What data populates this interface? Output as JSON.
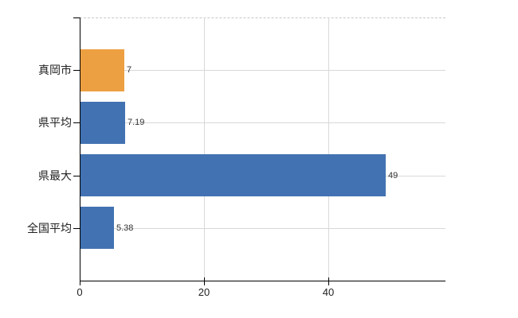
{
  "chart_data": {
    "type": "bar",
    "orientation": "horizontal",
    "title": "",
    "xlabel": "",
    "ylabel": "",
    "categories": [
      "真岡市",
      "県平均",
      "県最大",
      "全国平均"
    ],
    "values": [
      7,
      7.19,
      49,
      5.38
    ],
    "value_labels": [
      "7",
      "7.19",
      "49",
      "5.38"
    ],
    "bar_colors": [
      "#eda042",
      "#4272b2",
      "#4272b2",
      "#4272b2"
    ],
    "x_ticks": [
      0,
      20,
      40
    ],
    "x_tick_labels": [
      "0",
      "20",
      "40"
    ],
    "xlim": [
      0,
      58.8
    ],
    "grid": true,
    "legend": false,
    "colors": {
      "background": "#ffffff",
      "axis": "#000000",
      "gridline": "#d6d9d6",
      "top_border_dashed": "#c8c8c8",
      "value_text": "#333333",
      "category_text": "#222222",
      "tick_text": "#222222",
      "accent_orange": "#eda042",
      "accent_blue": "#4272b2"
    }
  }
}
